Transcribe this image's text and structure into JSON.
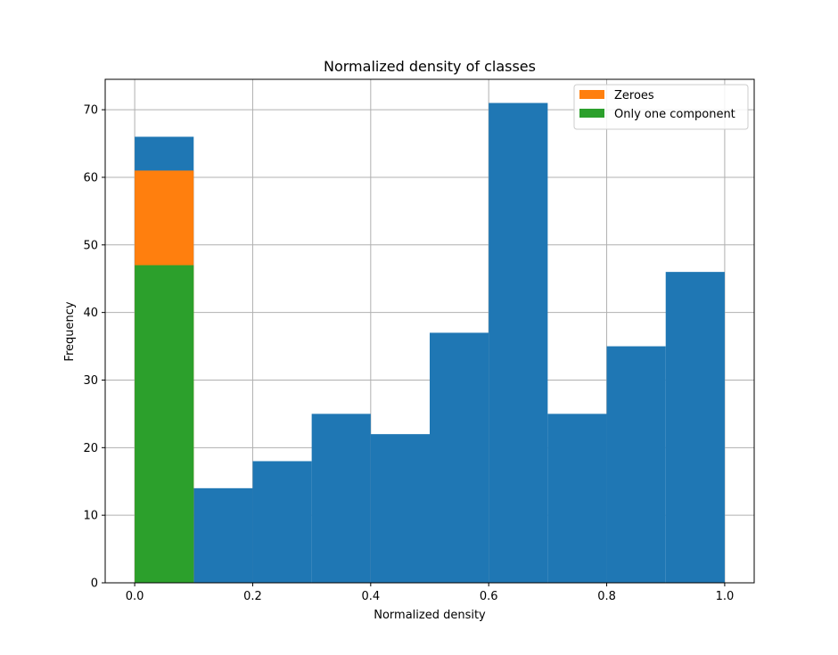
{
  "chart_data": {
    "type": "bar",
    "title": "Normalized density of classes",
    "xlabel": "Normalized density",
    "ylabel": "Frequency",
    "xlim": [
      -0.05,
      1.05
    ],
    "ylim": [
      0,
      74.5
    ],
    "grid": true,
    "legend_position": "top-right",
    "bin_edges": [
      0.0,
      0.1,
      0.2,
      0.3,
      0.4,
      0.5,
      0.6,
      0.7,
      0.8,
      0.9,
      1.0
    ],
    "x_ticks": [
      0.0,
      0.2,
      0.4,
      0.6,
      0.8,
      1.0
    ],
    "x_tick_labels": [
      "0.0",
      "0.2",
      "0.4",
      "0.6",
      "0.8",
      "1.0"
    ],
    "y_ticks": [
      0,
      10,
      20,
      30,
      40,
      50,
      60,
      70
    ],
    "y_tick_labels": [
      "0",
      "10",
      "20",
      "30",
      "40",
      "50",
      "60",
      "70"
    ],
    "series": [
      {
        "values": [
          66,
          14,
          18,
          25,
          22,
          37,
          71,
          25,
          35,
          46
        ],
        "color": "#1f77b4"
      },
      {
        "name": "Zeroes",
        "values": [
          61,
          0,
          0,
          0,
          0,
          0,
          0,
          0,
          0,
          0
        ],
        "color": "#ff7f0e"
      },
      {
        "name": "Only one component",
        "values": [
          47,
          0,
          0,
          0,
          0,
          0,
          0,
          0,
          0,
          0
        ],
        "color": "#2ca02c"
      }
    ]
  }
}
